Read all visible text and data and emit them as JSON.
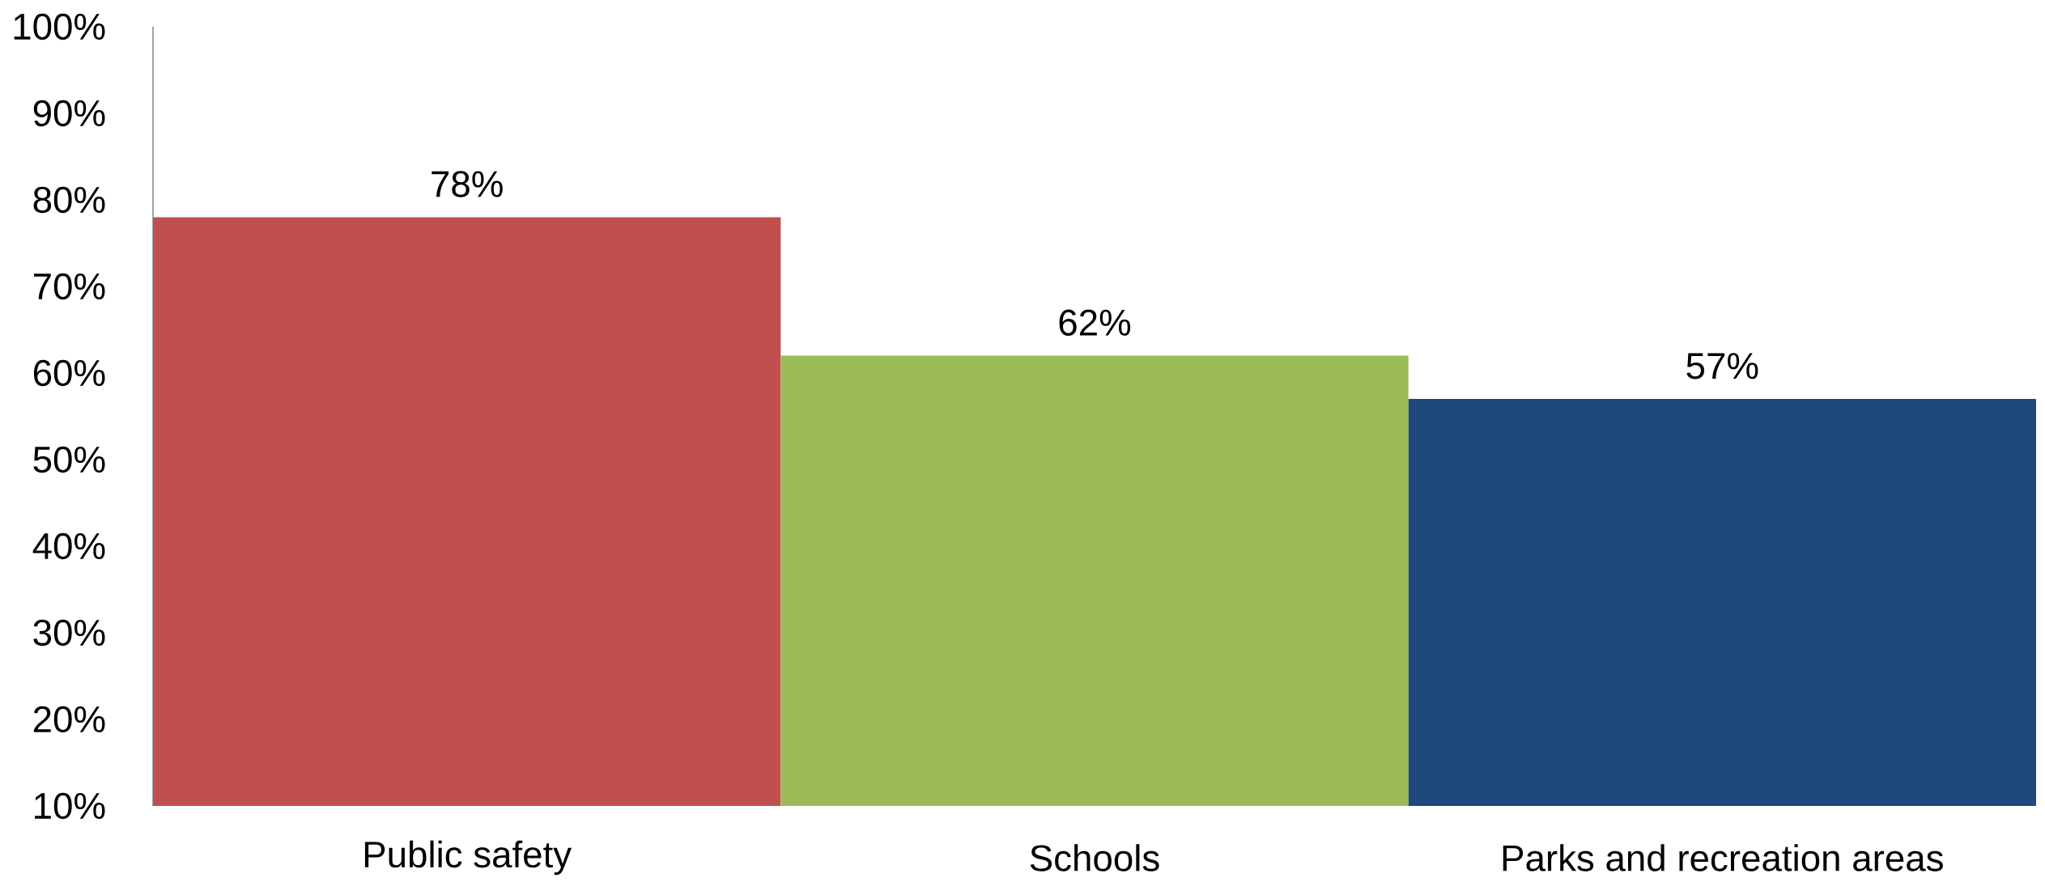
{
  "chart_data": {
    "type": "bar",
    "categories": [
      "Public safety",
      "Schools",
      "Parks and recreation areas"
    ],
    "values": [
      78,
      62,
      57
    ],
    "colors": [
      "#c0504d",
      "#9bbb59",
      "#1f497d"
    ],
    "value_labels": [
      "78%",
      "62%",
      "57%"
    ],
    "ylim": [
      10,
      100
    ],
    "yticks": [
      {
        "value": 10,
        "label": "10%"
      },
      {
        "value": 20,
        "label": "20%"
      },
      {
        "value": 30,
        "label": "30%"
      },
      {
        "value": 40,
        "label": "40%"
      },
      {
        "value": 50,
        "label": "50%"
      },
      {
        "value": 60,
        "label": "60%"
      },
      {
        "value": 70,
        "label": "70%"
      },
      {
        "value": 80,
        "label": "80%"
      },
      {
        "value": 90,
        "label": "90%"
      },
      {
        "value": 100,
        "label": "100%"
      }
    ]
  }
}
